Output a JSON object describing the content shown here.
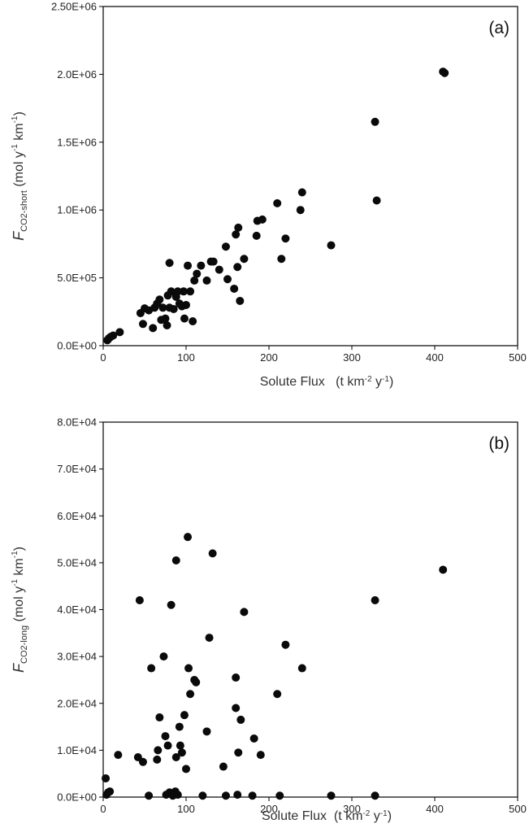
{
  "chart_data": [
    {
      "type": "scatter",
      "panel_label": "(a)",
      "xlabel": {
        "main": "Solute Flux",
        "unit_lead": "(t km",
        "sup1": "-2",
        "mid": " y",
        "sup2": "-1",
        "tail": ")"
      },
      "ylabel": {
        "italic": "F",
        "sub": "CO2-short",
        "lead": " (mol y",
        "sup1": "-1",
        "mid": " km",
        "sup2": "-1",
        "tail": ")"
      },
      "xlim": [
        0,
        500
      ],
      "ylim": [
        0,
        2500000
      ],
      "x_ticks": [
        "0",
        "100",
        "200",
        "300",
        "400",
        "500"
      ],
      "y_ticks": [
        "0.0E+00",
        "5.0E+05",
        "1.0E+06",
        "1.5E+06",
        "2.0E+06",
        "2.50E+06"
      ],
      "x_tick_values": [
        0,
        100,
        200,
        300,
        400,
        500
      ],
      "y_tick_values": [
        0,
        500000,
        1000000,
        1500000,
        2000000,
        2500000
      ],
      "grid": false,
      "points": [
        [
          5,
          40000
        ],
        [
          7,
          55000
        ],
        [
          9,
          65000
        ],
        [
          12,
          75000
        ],
        [
          20,
          100000
        ],
        [
          45,
          240000
        ],
        [
          48,
          160000
        ],
        [
          50,
          275000
        ],
        [
          55,
          260000
        ],
        [
          60,
          130000
        ],
        [
          62,
          280000
        ],
        [
          65,
          310000
        ],
        [
          68,
          340000
        ],
        [
          70,
          190000
        ],
        [
          72,
          280000
        ],
        [
          75,
          200000
        ],
        [
          77,
          150000
        ],
        [
          78,
          370000
        ],
        [
          80,
          610000
        ],
        [
          80,
          280000
        ],
        [
          82,
          400000
        ],
        [
          85,
          270000
        ],
        [
          88,
          360000
        ],
        [
          90,
          400000
        ],
        [
          92,
          310000
        ],
        [
          95,
          290000
        ],
        [
          97,
          400000
        ],
        [
          98,
          200000
        ],
        [
          100,
          300000
        ],
        [
          102,
          590000
        ],
        [
          105,
          400000
        ],
        [
          108,
          180000
        ],
        [
          110,
          480000
        ],
        [
          113,
          530000
        ],
        [
          118,
          590000
        ],
        [
          125,
          480000
        ],
        [
          130,
          620000
        ],
        [
          133,
          620000
        ],
        [
          140,
          560000
        ],
        [
          148,
          730000
        ],
        [
          150,
          490000
        ],
        [
          158,
          420000
        ],
        [
          160,
          820000
        ],
        [
          162,
          580000
        ],
        [
          163,
          870000
        ],
        [
          165,
          330000
        ],
        [
          170,
          640000
        ],
        [
          185,
          810000
        ],
        [
          186,
          920000
        ],
        [
          192,
          930000
        ],
        [
          210,
          1050000
        ],
        [
          215,
          640000
        ],
        [
          220,
          790000
        ],
        [
          238,
          1000000
        ],
        [
          240,
          1130000
        ],
        [
          275,
          740000
        ],
        [
          328,
          1650000
        ],
        [
          330,
          1070000
        ],
        [
          410,
          2020000
        ],
        [
          412,
          2010000
        ]
      ]
    },
    {
      "type": "scatter",
      "panel_label": "(b)",
      "xlabel": {
        "main": "Solute Flux",
        "unit_lead": "(t km",
        "sup1": "-2",
        "mid": " y",
        "sup2": "-1",
        "tail": ")"
      },
      "ylabel": {
        "italic": "F",
        "sub": "CO2-long",
        "lead": " (mol y",
        "sup1": "-1",
        "mid": " km",
        "sup2": "-1",
        "tail": ")"
      },
      "xlim": [
        0,
        500
      ],
      "ylim": [
        0,
        80000
      ],
      "x_ticks": [
        "0",
        "100",
        "200",
        "300",
        "400",
        "500"
      ],
      "y_ticks": [
        "0.0E+00",
        "1.0E+04",
        "2.0E+04",
        "3.0E+04",
        "4.0E+04",
        "5.0E+04",
        "6.0E+04",
        "7.0E+04",
        "8.0E+04"
      ],
      "x_tick_values": [
        0,
        100,
        200,
        300,
        400,
        500
      ],
      "y_tick_values": [
        0,
        10000,
        20000,
        30000,
        40000,
        50000,
        60000,
        70000,
        80000
      ],
      "grid": false,
      "points": [
        [
          3,
          4000
        ],
        [
          4,
          500
        ],
        [
          6,
          1000
        ],
        [
          8,
          1200
        ],
        [
          18,
          9000
        ],
        [
          42,
          8500
        ],
        [
          44,
          42000
        ],
        [
          48,
          7500
        ],
        [
          55,
          300
        ],
        [
          58,
          27500
        ],
        [
          65,
          8000
        ],
        [
          66,
          10000
        ],
        [
          68,
          17000
        ],
        [
          73,
          30000
        ],
        [
          75,
          13000
        ],
        [
          76,
          500
        ],
        [
          78,
          11000
        ],
        [
          80,
          1000
        ],
        [
          82,
          41000
        ],
        [
          84,
          300
        ],
        [
          87,
          1200
        ],
        [
          88,
          50500
        ],
        [
          88,
          8500
        ],
        [
          90,
          500
        ],
        [
          92,
          15000
        ],
        [
          93,
          11000
        ],
        [
          95,
          9500
        ],
        [
          98,
          17500
        ],
        [
          100,
          6000
        ],
        [
          102,
          55500
        ],
        [
          103,
          27500
        ],
        [
          105,
          22000
        ],
        [
          110,
          25000
        ],
        [
          112,
          24500
        ],
        [
          120,
          300
        ],
        [
          125,
          14000
        ],
        [
          128,
          34000
        ],
        [
          132,
          52000
        ],
        [
          145,
          6500
        ],
        [
          148,
          300
        ],
        [
          160,
          25500
        ],
        [
          160,
          19000
        ],
        [
          162,
          500
        ],
        [
          163,
          9500
        ],
        [
          166,
          16500
        ],
        [
          170,
          39500
        ],
        [
          180,
          300
        ],
        [
          182,
          12500
        ],
        [
          190,
          9000
        ],
        [
          210,
          22000
        ],
        [
          213,
          300
        ],
        [
          220,
          32500
        ],
        [
          240,
          27500
        ],
        [
          275,
          300
        ],
        [
          328,
          42000
        ],
        [
          328,
          300
        ],
        [
          410,
          48500
        ]
      ]
    }
  ]
}
